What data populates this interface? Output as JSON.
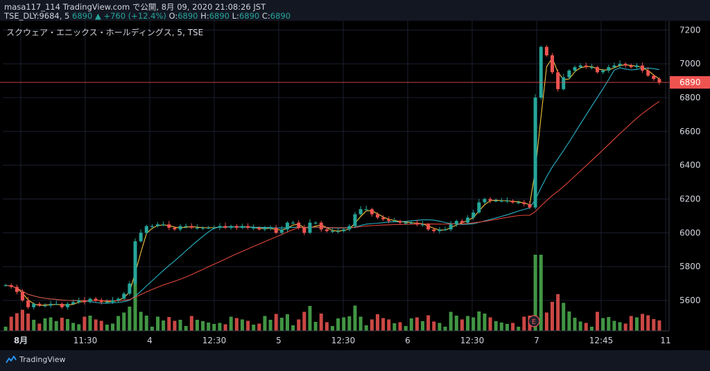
{
  "header": {
    "line1_user": "masa117_114",
    "line1_site": "TradingView.com",
    "line1_published": "で公開, 8月 09, 2020 21:08:26 JST",
    "line2_symbol": "TSE_DLY:9684, 5",
    "line2_last": "6890",
    "line2_arrow": "▲",
    "line2_change": "+760 (+12.4%)",
    "o_label": "O:",
    "o_value": "6890",
    "h_label": "H:",
    "h_value": "6890",
    "l_label": "L:",
    "l_value": "6890",
    "c_label": "C:",
    "c_value": "6890"
  },
  "chart_title": "スクウェア・エニックス・ホールディングス, 5, TSE",
  "footer": {
    "brand": "TradingView",
    "brand_icon": "tradingview-logo-icon"
  },
  "colors": {
    "up": "#26a69a",
    "down": "#ef5350",
    "vol_up": "#4caf50",
    "vol_down": "#ef5350",
    "ma_fast": "#f5c542",
    "ma_mid": "#2bb3c8",
    "ma_slow": "#e0463a",
    "last_price": "#ef5350",
    "grid": "#1c2030",
    "axis_text": "#d1d4dc"
  },
  "chart_data": {
    "type": "candlestick",
    "title": "スクウェア・エニックス・ホールディングス, 5, TSE",
    "ylim": [
      5420,
      7230
    ],
    "y_ticks": [
      5600,
      5800,
      6000,
      6200,
      6400,
      6600,
      6800,
      7000,
      7200
    ],
    "x_ticks": [
      "8月",
      "11:30",
      "4",
      "12:30",
      "5",
      "12:30",
      "6",
      "12:30",
      "7",
      "12:45",
      "11"
    ],
    "last_price": 6890,
    "grid": true,
    "event_marker": {
      "label": "E",
      "x_tick": "7"
    },
    "candles": [
      5690,
      5680,
      5650,
      5600,
      5560,
      5580,
      5570,
      5570,
      5580,
      5580,
      5560,
      5580,
      5590,
      5600,
      5590,
      5610,
      5600,
      5590,
      5590,
      5600,
      5610,
      5640,
      5700,
      5950,
      6000,
      6040,
      6040,
      6050,
      6050,
      6030,
      6020,
      6040,
      6040,
      6030,
      6030,
      6030,
      6030,
      6030,
      6040,
      6030,
      6040,
      6030,
      6040,
      6030,
      6030,
      6020,
      6030,
      6030,
      6000,
      6020,
      6060,
      6060,
      6030,
      6000,
      6060,
      6060,
      6020,
      6010,
      6010,
      6010,
      6020,
      6040,
      6110,
      6140,
      6140,
      6110,
      6090,
      6080,
      6070,
      6070,
      6060,
      6060,
      6060,
      6050,
      6050,
      6020,
      6010,
      6020,
      6020,
      6050,
      6070,
      6060,
      6090,
      6120,
      6180,
      6200,
      6190,
      6190,
      6190,
      6190,
      6180,
      6180,
      6170,
      6150,
      6800,
      7100,
      7050,
      6950,
      6850,
      6920,
      6960,
      6980,
      6990,
      6980,
      6980,
      6950,
      6960,
      6980,
      6990,
      7000,
      6990,
      6980,
      6990,
      6960,
      6930,
      6910,
      6890
    ]
  }
}
